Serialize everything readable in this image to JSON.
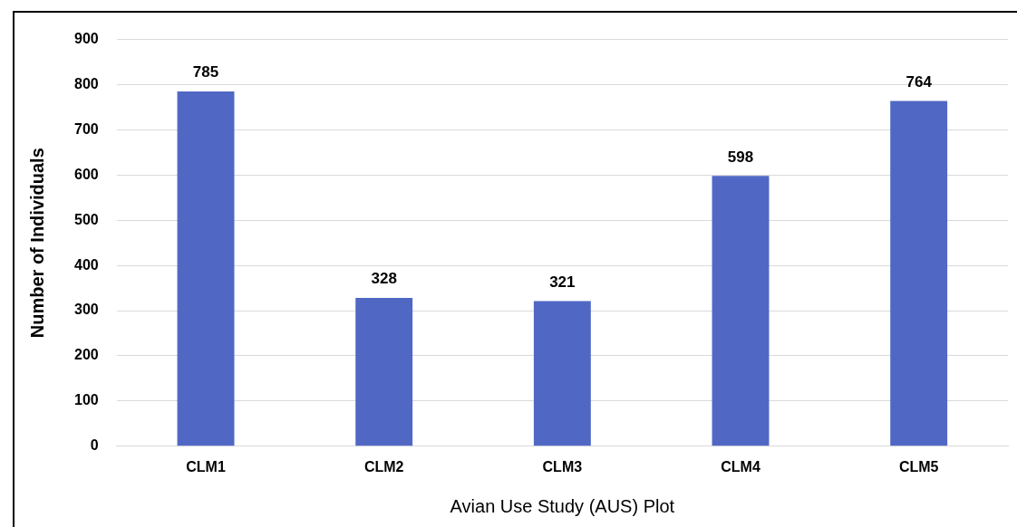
{
  "chart_data": {
    "type": "bar",
    "xlabel": "Avian Use Study (AUS) Plot",
    "ylabel": "Number of Individuals",
    "categories": [
      "CLM1",
      "CLM2",
      "CLM3",
      "CLM4",
      "CLM5"
    ],
    "values": [
      785,
      328,
      321,
      598,
      764
    ],
    "color": "#5068c4",
    "ylim": [
      0,
      900
    ],
    "yticks": [
      0,
      100,
      200,
      300,
      400,
      500,
      600,
      700,
      800,
      900
    ],
    "grid": "y",
    "data_labels": true,
    "legend": false
  }
}
